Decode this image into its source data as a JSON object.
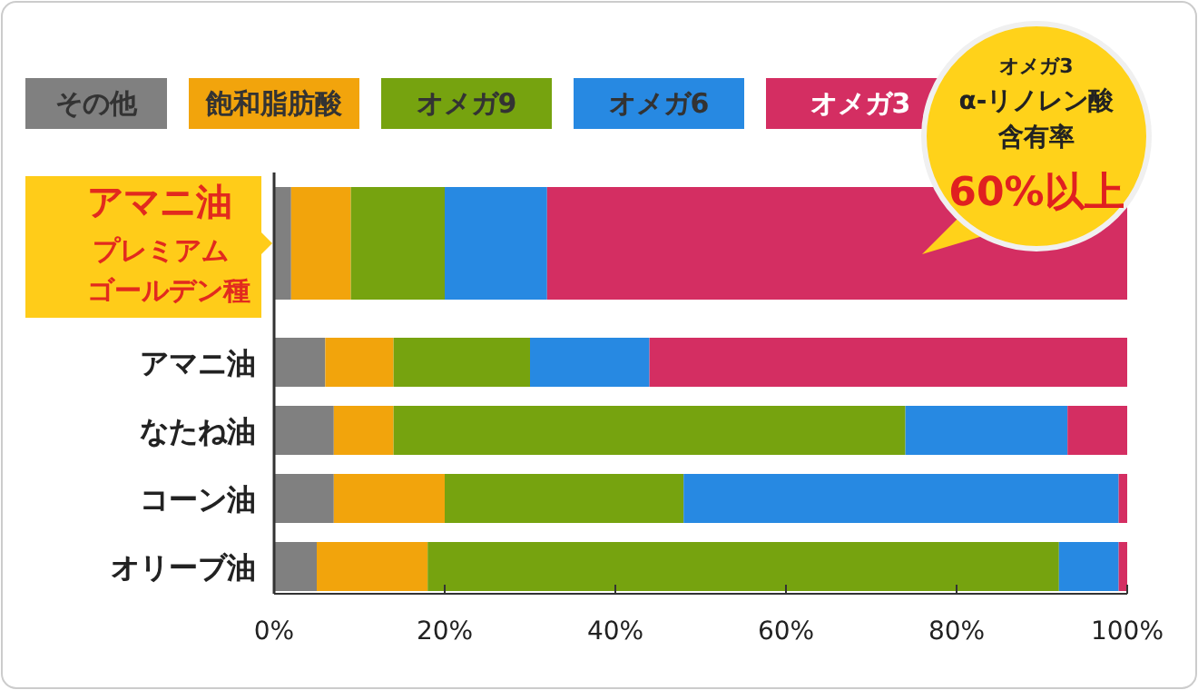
{
  "chart_data": {
    "type": "bar",
    "orientation": "horizontal",
    "stacked": true,
    "categories": [
      "アマニ油プレミアムゴールデン種",
      "アマニ油",
      "なたね油",
      "コーン油",
      "オリーブ油"
    ],
    "series": [
      {
        "name": "その他",
        "color": "#808080",
        "values": [
          2,
          6,
          7,
          7,
          5
        ]
      },
      {
        "name": "飽和脂肪酸",
        "color": "#f2a40c",
        "values": [
          7,
          8,
          7,
          13,
          13
        ]
      },
      {
        "name": "オメガ9",
        "color": "#76a30f",
        "values": [
          11,
          16,
          60,
          28,
          74
        ]
      },
      {
        "name": "オメガ6",
        "color": "#2789e2",
        "values": [
          12,
          14,
          19,
          51,
          7
        ]
      },
      {
        "name": "オメガ3",
        "color": "#d42e62",
        "values": [
          68,
          56,
          7,
          1,
          1
        ]
      }
    ],
    "xlim": [
      0,
      100
    ],
    "xticks": [
      {
        "value": 0,
        "label": "0%"
      },
      {
        "value": 20,
        "label": "20%"
      },
      {
        "value": 40,
        "label": "40%"
      },
      {
        "value": 60,
        "label": "60%"
      },
      {
        "value": 80,
        "label": "80%"
      },
      {
        "value": 100,
        "label": "100%"
      }
    ],
    "legend": "top",
    "annotations": [
      "オメガ3",
      "α-リノレン酸",
      "含有率",
      "60%以上"
    ]
  }
}
